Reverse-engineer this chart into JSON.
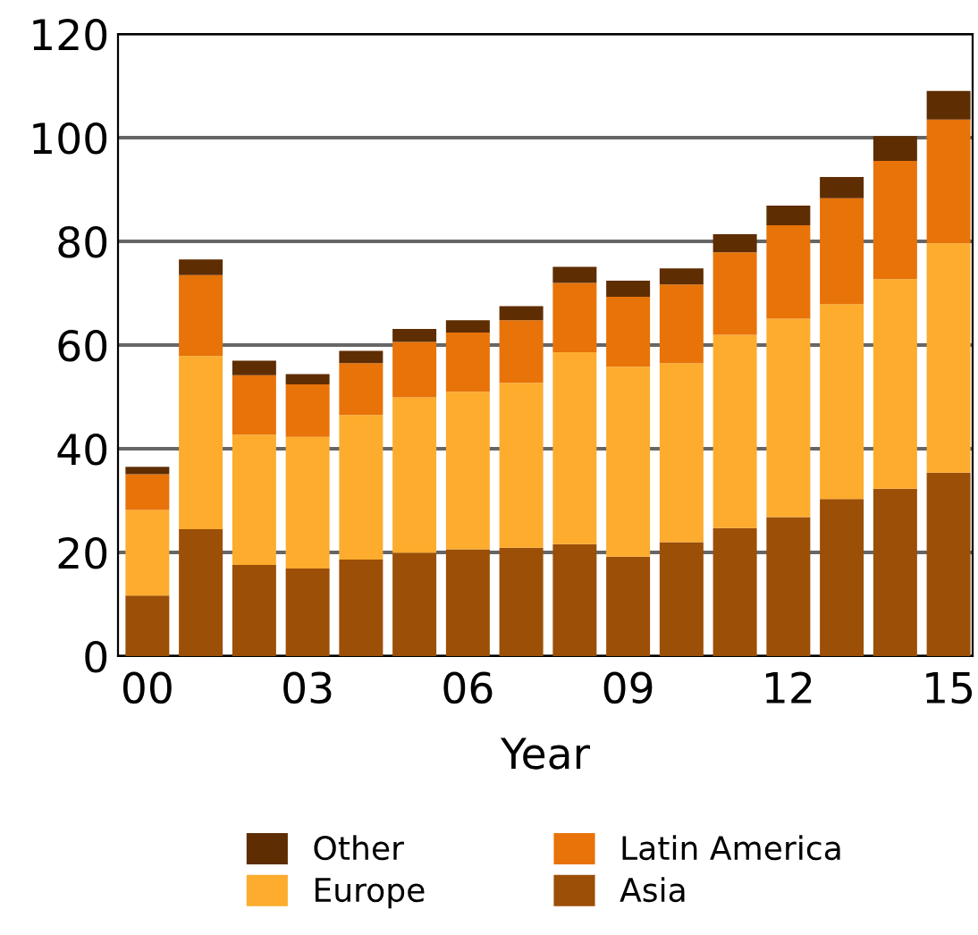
{
  "chart_data": {
    "type": "bar",
    "stacked": true,
    "xlabel": "Year",
    "categories": [
      "00",
      null,
      null,
      "03",
      null,
      null,
      "06",
      null,
      null,
      "09",
      null,
      null,
      "12",
      null,
      null,
      "15"
    ],
    "series": [
      {
        "name": "Asia",
        "color": "#9c4f06",
        "values": [
          11.7,
          24.5,
          17.6,
          16.9,
          18.6,
          19.9,
          20.6,
          20.9,
          21.6,
          19.2,
          22.0,
          24.7,
          26.8,
          30.3,
          32.3,
          35.4
        ]
      },
      {
        "name": "Europe",
        "color": "#fdac2e",
        "values": [
          16.5,
          33.4,
          25.1,
          25.4,
          27.9,
          30.0,
          30.4,
          31.8,
          37.0,
          36.6,
          34.5,
          37.3,
          38.3,
          37.6,
          40.4,
          44.2
        ]
      },
      {
        "name": "Latin America",
        "color": "#e87308",
        "values": [
          6.9,
          15.6,
          11.5,
          10.1,
          10.0,
          10.7,
          11.4,
          12.1,
          13.4,
          13.5,
          15.2,
          15.9,
          18.0,
          20.4,
          22.8,
          23.9
        ]
      },
      {
        "name": "Other",
        "color": "#5f2d02",
        "values": [
          1.4,
          3.0,
          2.8,
          2.0,
          2.4,
          2.5,
          2.4,
          2.7,
          3.1,
          3.1,
          3.1,
          3.5,
          3.8,
          4.1,
          4.8,
          5.5
        ]
      }
    ],
    "ylim": [
      0,
      120
    ],
    "yticks": [
      0,
      20,
      40,
      60,
      80,
      100,
      120
    ],
    "grid": "y",
    "legend": "bottom"
  }
}
